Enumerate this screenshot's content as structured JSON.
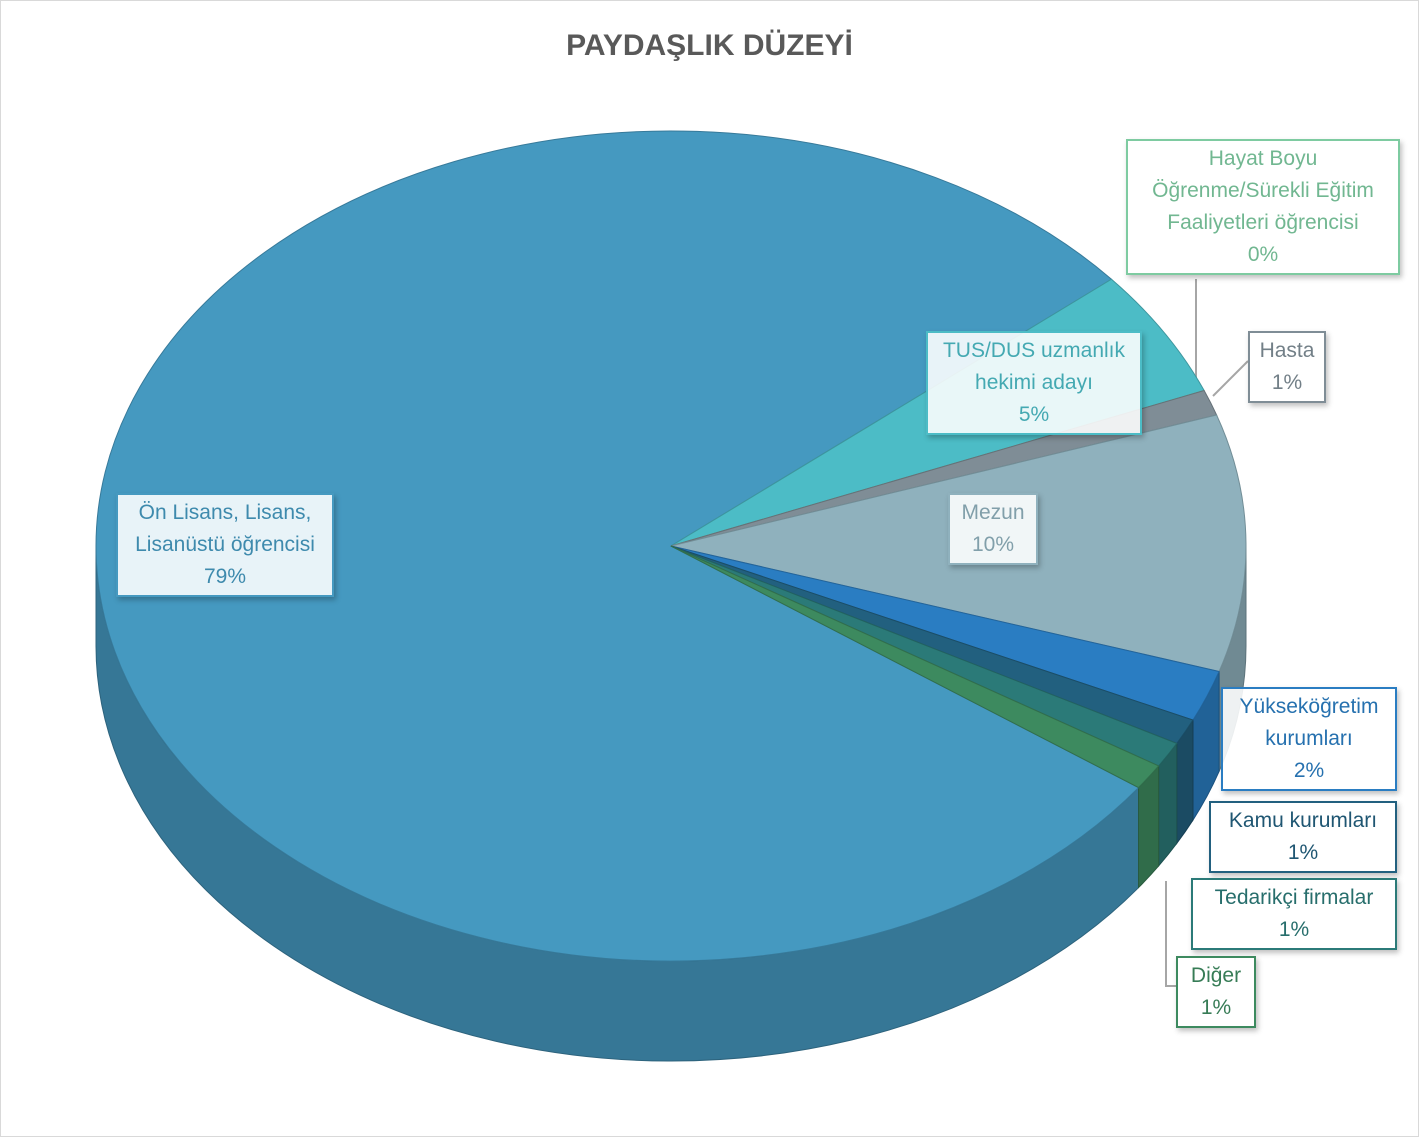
{
  "chart_data": {
    "type": "pie",
    "title": "PAYDAŞLIK DÜZEYİ",
    "categories": [
      "Ön Lisans, Lisans, Lisanüstü öğrencisi",
      "TUS/DUS uzmanlık hekimi adayı",
      "Hayat Boyu Öğrenme/Sürekli Eğitim Faaliyetleri öğrencisi",
      "Hasta",
      "Mezun",
      "Yükseköğretim kurumları",
      "Kamu kurumları",
      "Tedarikçi firmalar",
      "Diğer"
    ],
    "values": [
      79,
      5,
      0,
      1,
      10,
      2,
      1,
      1,
      1
    ],
    "value_labels": [
      "79%",
      "5%",
      "0%",
      "1%",
      "10%",
      "2%",
      "1%",
      "1%",
      "1%"
    ],
    "colors": [
      "#4599c0",
      "#4cbcc6",
      "#7ecba1",
      "#7f8d96",
      "#8fb1bd",
      "#2a7dc2",
      "#22607f",
      "#2b7a78",
      "#3d8a5f"
    ]
  }
}
